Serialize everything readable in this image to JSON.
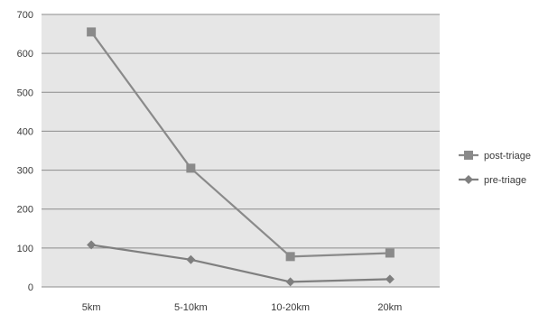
{
  "chart_data": {
    "type": "line",
    "categories": [
      "5km",
      "5-10km",
      "10-20km",
      "20km"
    ],
    "series": [
      {
        "name": "post-triage",
        "values": [
          655,
          305,
          78,
          87
        ],
        "color": "#8a8a8a",
        "marker": "square"
      },
      {
        "name": "pre-triage",
        "values": [
          108,
          70,
          13,
          20
        ],
        "color": "#7f7f7f",
        "marker": "diamond"
      }
    ],
    "ylim": [
      0,
      700
    ],
    "yticks": [
      0,
      100,
      200,
      300,
      400,
      500,
      600,
      700
    ],
    "grid": true,
    "legend_position": "right",
    "colors": {
      "plot_background": "#e6e6e6",
      "grid_line": "#8c8c8c",
      "axis_text": "#3a3a3a"
    }
  }
}
